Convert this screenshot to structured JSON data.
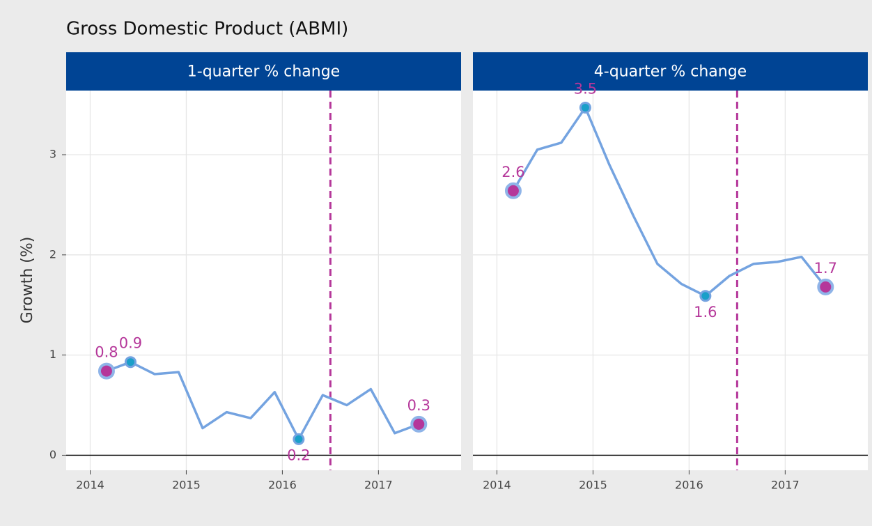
{
  "title": "Gross Domestic Product (ABMI)",
  "ylabel": "Growth (%)",
  "chart_data": [
    {
      "type": "line",
      "title": "1-quarter % change",
      "x": [
        2014.17,
        2014.42,
        2014.67,
        2014.92,
        2015.17,
        2015.42,
        2015.67,
        2015.92,
        2016.17,
        2016.42,
        2016.67,
        2016.92,
        2017.17,
        2017.42
      ],
      "series": [
        {
          "name": "1-quarter % change",
          "color": "#74a3e0",
          "values": [
            0.84,
            0.93,
            0.81,
            0.83,
            0.27,
            0.43,
            0.37,
            0.63,
            0.16,
            0.6,
            0.5,
            0.66,
            0.22,
            0.31
          ],
          "value_labels": [
            "0.8",
            "0.9",
            null,
            null,
            null,
            null,
            null,
            null,
            "0.2",
            null,
            null,
            null,
            null,
            "0.3"
          ],
          "highlight": [
            "#b5379a",
            "#1a9fc9",
            null,
            null,
            null,
            null,
            null,
            null,
            "#1a9fc9",
            null,
            null,
            null,
            null,
            "#b5379a"
          ]
        }
      ],
      "vline": 2016.5,
      "vline_color": "#b5379a",
      "xlim": [
        2013.75,
        2017.86
      ],
      "xticks": [
        2014,
        2015,
        2016,
        2017
      ],
      "ylim": [
        -0.15,
        3.64
      ],
      "yticks": [
        0,
        1,
        2,
        3
      ],
      "grid": true
    },
    {
      "type": "line",
      "title": "4-quarter % change",
      "x": [
        2014.17,
        2014.42,
        2014.67,
        2014.92,
        2015.17,
        2015.42,
        2015.67,
        2015.92,
        2016.17,
        2016.42,
        2016.67,
        2016.92,
        2017.17,
        2017.42
      ],
      "series": [
        {
          "name": "4-quarter % change",
          "color": "#74a3e0",
          "values": [
            2.64,
            3.05,
            3.12,
            3.47,
            2.9,
            2.39,
            1.91,
            1.71,
            1.59,
            1.79,
            1.91,
            1.93,
            1.98,
            1.68
          ],
          "value_labels": [
            "2.6",
            null,
            null,
            "3.5",
            null,
            null,
            null,
            null,
            "1.6",
            null,
            null,
            null,
            null,
            "1.7"
          ],
          "highlight": [
            "#b5379a",
            null,
            null,
            "#1a9fc9",
            null,
            null,
            null,
            null,
            "#1a9fc9",
            null,
            null,
            null,
            null,
            "#b5379a"
          ]
        }
      ],
      "vline": 2016.5,
      "vline_color": "#b5379a",
      "xlim": [
        2013.75,
        2017.86
      ],
      "xticks": [
        2014,
        2015,
        2016,
        2017
      ],
      "ylim": [
        -0.15,
        3.64
      ],
      "yticks": [
        0,
        1,
        2,
        3
      ],
      "grid": true
    }
  ]
}
